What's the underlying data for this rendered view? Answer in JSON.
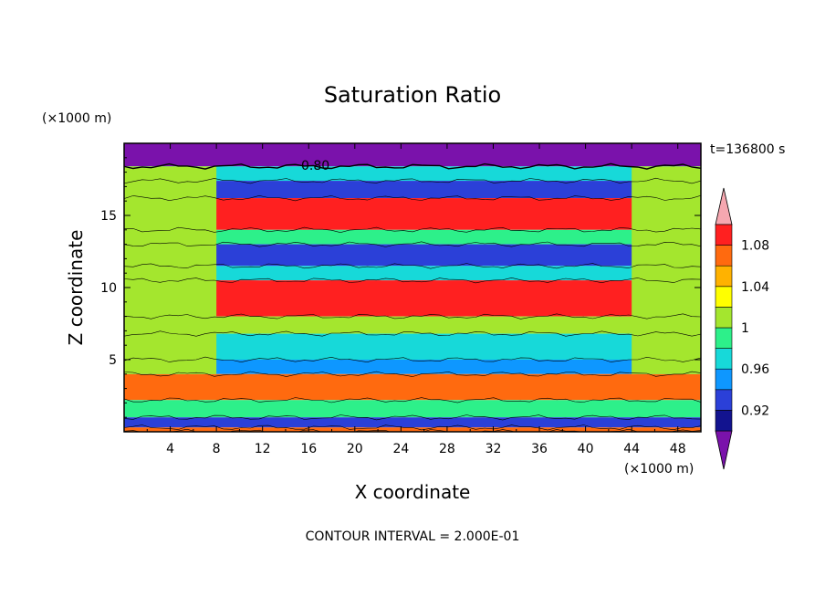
{
  "chart_data": {
    "type": "heatmap",
    "title": "Saturation Ratio",
    "xlabel": "X coordinate",
    "ylabel": "Z coordinate",
    "x_unit": "(×1000 m)",
    "y_unit": "(×1000 m)",
    "time_label": "t=136800 s",
    "contour_label": "0.80",
    "footer": "CONTOUR INTERVAL = 2.000E-01",
    "xlim": [
      0,
      50
    ],
    "ylim": [
      0,
      20
    ],
    "x_ticks": [
      "4",
      "8",
      "12",
      "16",
      "20",
      "24",
      "28",
      "32",
      "36",
      "40",
      "44",
      "48"
    ],
    "y_ticks": [
      "5",
      "10",
      "15"
    ],
    "colorbar": {
      "labels": [
        "0.92",
        "0.96",
        "1",
        "1.04",
        "1.08"
      ],
      "levels": [
        0.9,
        0.92,
        0.94,
        0.96,
        0.98,
        1.0,
        1.02,
        1.04,
        1.06,
        1.08,
        1.1
      ],
      "colors": [
        "#7a12ab",
        "#12138f",
        "#2b40d8",
        "#0e97ff",
        "#17d9d9",
        "#2df08a",
        "#a4e62e",
        "#ffff00",
        "#ffb200",
        "#ff6a0f",
        "#ff2020",
        "#f6a7b0"
      ]
    },
    "bands": [
      {
        "z_from": 18.4,
        "z_to": 20.0,
        "value": 0.8
      },
      {
        "z_from": 17.4,
        "z_to": 18.4,
        "value": 0.97
      },
      {
        "z_from": 16.2,
        "z_to": 17.4,
        "value": 0.93
      },
      {
        "z_from": 14.0,
        "z_to": 16.2,
        "value": 1.08
      },
      {
        "z_from": 13.0,
        "z_to": 14.0,
        "value": 0.98
      },
      {
        "z_from": 11.5,
        "z_to": 13.0,
        "value": 0.92
      },
      {
        "z_from": 10.5,
        "z_to": 11.5,
        "value": 0.97
      },
      {
        "z_from": 8.0,
        "z_to": 10.5,
        "value": 1.09
      },
      {
        "z_from": 6.8,
        "z_to": 8.0,
        "value": 1.01
      },
      {
        "z_from": 5.0,
        "z_to": 6.8,
        "value": 0.96
      },
      {
        "z_from": 4.0,
        "z_to": 5.0,
        "value": 0.94
      },
      {
        "z_from": 2.2,
        "z_to": 4.0,
        "value": 1.06
      },
      {
        "z_from": 1.0,
        "z_to": 2.2,
        "value": 0.98
      },
      {
        "z_from": 0.3,
        "z_to": 1.0,
        "value": 0.93
      },
      {
        "z_from": 0.0,
        "z_to": 0.3,
        "value": 1.06
      }
    ],
    "side_regions": {
      "x_left_to": 8,
      "x_right_from": 44,
      "value": 1.01
    }
  }
}
